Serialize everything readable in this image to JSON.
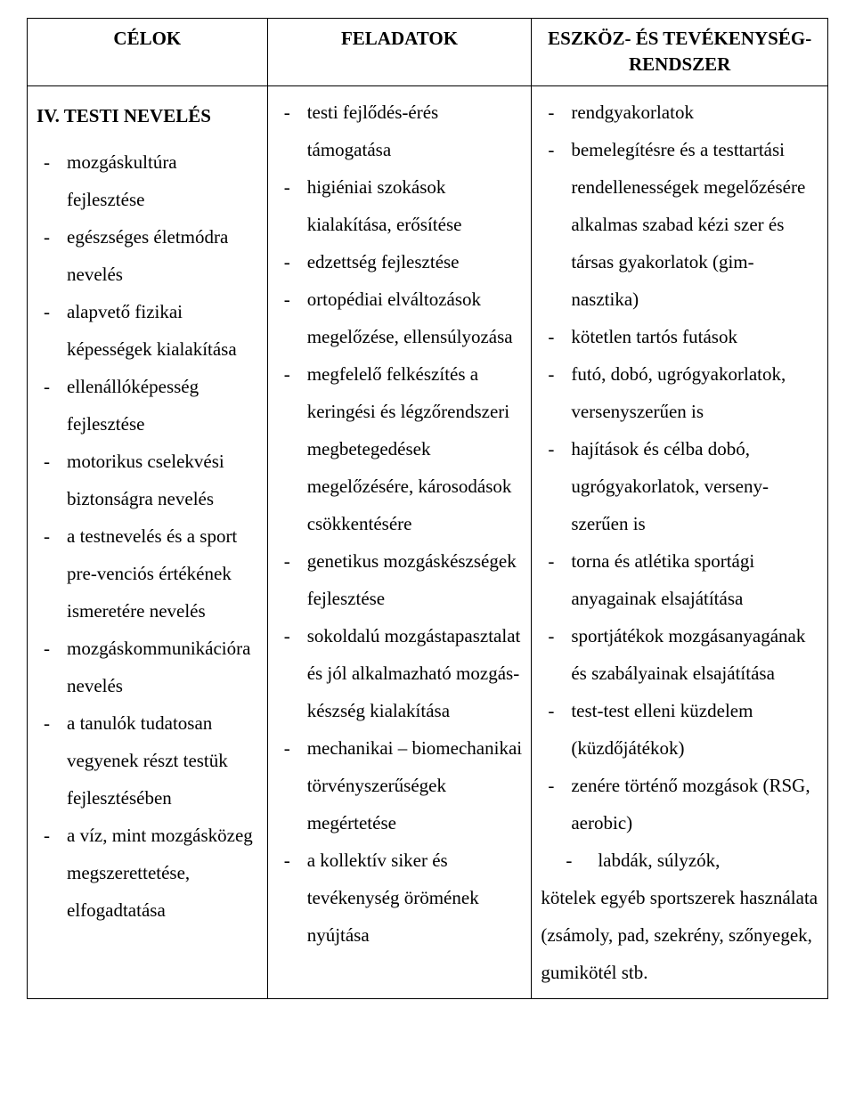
{
  "headers": {
    "col1": "CÉLOK",
    "col2": "FELADATOK",
    "col3": "ESZKÖZ- ÉS TEVÉKENYSÉG-RENDSZER"
  },
  "section_title": "IV. TESTI NEVELÉS",
  "col1_items": [
    "mozgáskultúra fejlesztése",
    "egészséges életmódra nevelés",
    "alapvető fizikai képességek kialakítása",
    "ellenállóképesség fejlesztése",
    "motorikus cselekvési biztonságra nevelés",
    "a testnevelés és a sport pre-venciós értékének ismeretére nevelés",
    "mozgáskommunikációra nevelés",
    "a tanulók tudatosan vegyenek részt testük fejlesztésében",
    "a víz, mint mozgásközeg megszerettetése, elfogadtatása"
  ],
  "col2_items": [
    "testi fejlődés-érés támogatása",
    "higiéniai szokások kialakítása, erősítése",
    "edzettség fejlesztése",
    "ortopédiai elváltozások megelőzése, ellensúlyozása",
    "megfelelő felkészítés a keringési és légzőrendszeri megbetegedések megelőzésére, károsodások csökkentésére",
    "genetikus mozgáskészségek fejlesztése",
    "sokoldalú mozgástapasztalat és jól alkalmazható mozgás-készség kialakítása",
    "mechanikai – biomechanikai törvényszerűségek megértetése",
    "a kollektív siker és tevékenység örömének nyújtása"
  ],
  "col3_items": [
    "rendgyakorlatok",
    "bemelegítésre és a testtartási rendellenességek megelőzésére alkalmas szabad kézi szer és társas gyakorlatok  (gim-nasztika)",
    "kötetlen tartós futások",
    "futó, dobó, ugrógyakorlatok, versenyszerűen is",
    "hajítások és célba dobó, ugrógyakorlatok, verseny-szerűen is",
    "torna és atlétika sportági anyagainak elsajátítása",
    "sportjátékok mozgásanyagának és szabályainak elsajátítása",
    "test-test elleni küzdelem (küzdőjátékok)",
    "zenére történő mozgások (RSG, aerobic)"
  ],
  "col3_indented_item": "labdák, súlyzók,",
  "col3_trailing": "kötelek egyéb sportszerek használata (zsámoly, pad, szekrény, szőnyegek, gumikötél stb."
}
